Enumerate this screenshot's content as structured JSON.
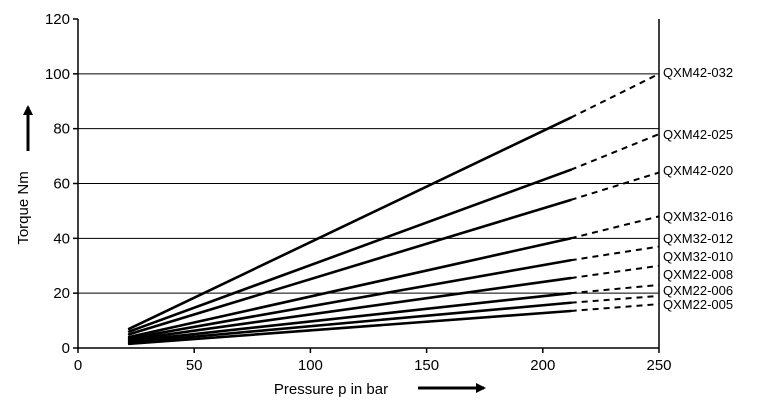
{
  "chart_data": {
    "type": "line",
    "title": "",
    "xlabel": "Pressure p in bar",
    "ylabel": "Torque Nm",
    "xlim": [
      0,
      250
    ],
    "ylim": [
      0,
      120
    ],
    "x_ticks": [
      "0",
      "50",
      "100",
      "150",
      "200",
      "250"
    ],
    "y_ticks": [
      "0",
      "20",
      "40",
      "60",
      "80",
      "100",
      "120"
    ],
    "grid": "horizontal",
    "legend": "inline at right edge",
    "colors": {
      "line": "#000000",
      "grid": "#000000"
    },
    "solid_range": [
      22,
      212
    ],
    "dashed_range": [
      212,
      250
    ],
    "series": [
      {
        "name": "QXM42-032",
        "x": [
          22,
          212,
          250
        ],
        "values": [
          7,
          84,
          100
        ]
      },
      {
        "name": "QXM42-025",
        "x": [
          22,
          212,
          250
        ],
        "values": [
          6,
          65,
          78
        ]
      },
      {
        "name": "QXM42-020",
        "x": [
          22,
          212,
          250
        ],
        "values": [
          5,
          54,
          64
        ]
      },
      {
        "name": "QXM32-016",
        "x": [
          22,
          212,
          250
        ],
        "values": [
          4,
          40,
          48
        ]
      },
      {
        "name": "QXM32-012",
        "x": [
          22,
          212,
          250
        ],
        "values": [
          3.5,
          32,
          37
        ]
      },
      {
        "name": "QXM32-010",
        "x": [
          22,
          212,
          250
        ],
        "values": [
          3,
          25.5,
          30
        ]
      },
      {
        "name": "QXM22-008",
        "x": [
          22,
          212,
          250
        ],
        "values": [
          2.5,
          20,
          23
        ]
      },
      {
        "name": "QXM22-006",
        "x": [
          22,
          212,
          250
        ],
        "values": [
          2,
          16.5,
          19
        ]
      },
      {
        "name": "QXM22-005",
        "x": [
          22,
          212,
          250
        ],
        "values": [
          1.5,
          13.5,
          16
        ]
      }
    ]
  }
}
